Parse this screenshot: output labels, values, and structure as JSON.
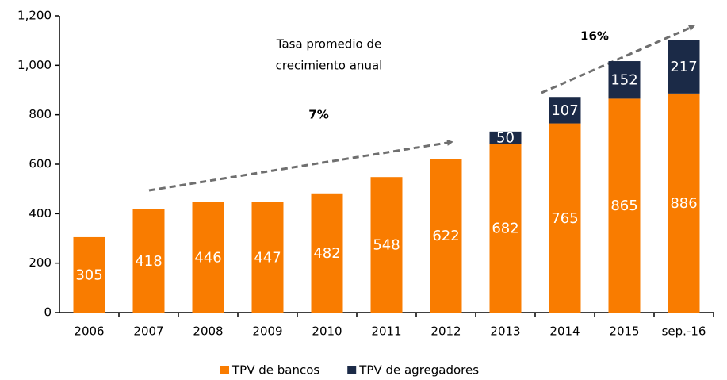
{
  "chart_data": {
    "type": "stacked-bar",
    "categories": [
      "2006",
      "2007",
      "2008",
      "2009",
      "2010",
      "2011",
      "2012",
      "2013",
      "2014",
      "2015",
      "sep.-16"
    ],
    "series": [
      {
        "name": "TPV de bancos",
        "color": "#f97c00",
        "values": [
          305,
          418,
          446,
          447,
          482,
          548,
          622,
          682,
          765,
          865,
          886
        ]
      },
      {
        "name": "TPV de agregadores",
        "color": "#1b2a47",
        "values": [
          null,
          null,
          null,
          null,
          null,
          null,
          null,
          50,
          107,
          152,
          217
        ]
      }
    ],
    "ylim": [
      0,
      1200
    ],
    "yticks": [
      0,
      200,
      400,
      600,
      800,
      {
        "value": 1000,
        "label": "1,000"
      },
      {
        "value": 1200,
        "label": "1,200"
      }
    ],
    "annotations": [
      "Tasa promedio de",
      "crecimiento anual",
      "7%",
      "16%"
    ],
    "legend": "bottom"
  }
}
